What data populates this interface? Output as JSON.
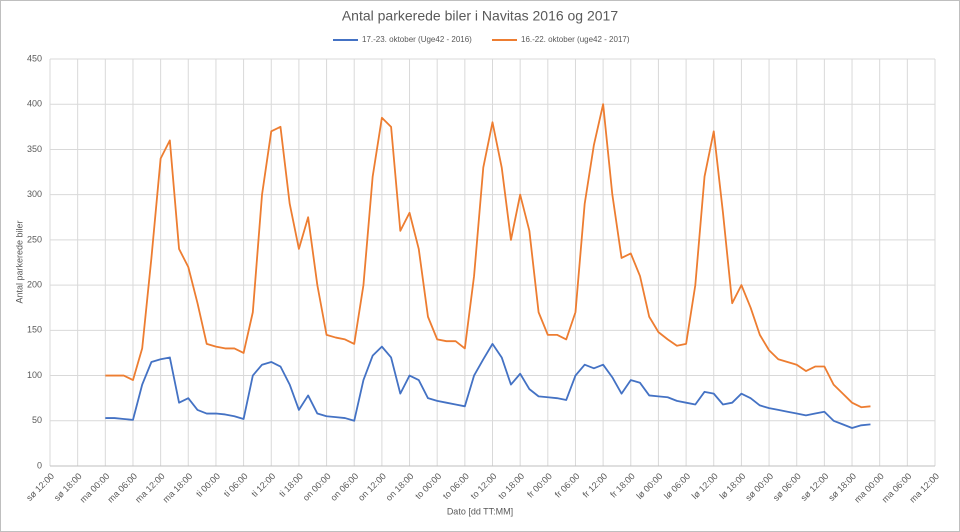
{
  "chart_data": {
    "type": "line",
    "title": "Antal parkerede biler i Navitas 2016 og 2017",
    "x_label": "Dato [dd TT:MM]",
    "y_label": "Antal parkerede biler",
    "x": [
      12,
      14,
      16,
      18,
      20,
      22,
      24,
      26,
      28,
      30,
      32,
      34,
      36,
      38,
      40,
      42,
      44,
      46,
      48,
      50,
      52,
      54,
      56,
      58,
      60,
      62,
      64,
      66,
      68,
      70,
      72,
      74,
      76,
      78,
      80,
      82,
      84,
      86,
      88,
      90,
      92,
      94,
      96,
      98,
      100,
      102,
      104,
      106,
      108,
      110,
      112,
      114,
      116,
      118,
      120,
      122,
      124,
      126,
      128,
      130,
      132,
      134,
      136,
      138,
      140,
      142,
      144,
      146,
      148,
      150,
      152,
      154,
      156,
      158,
      160,
      162,
      164,
      166,
      168,
      170,
      172,
      174,
      176,
      178
    ],
    "series": [
      {
        "name": "17.-23. oktober (Uge42 - 2016)",
        "color": "#4472c4",
        "values": [
          53,
          53,
          52,
          51,
          90,
          115,
          118,
          120,
          70,
          75,
          62,
          58,
          58,
          57,
          55,
          52,
          100,
          112,
          115,
          110,
          90,
          62,
          78,
          58,
          55,
          54,
          53,
          50,
          95,
          122,
          132,
          120,
          80,
          100,
          95,
          75,
          72,
          70,
          68,
          66,
          100,
          118,
          135,
          120,
          90,
          102,
          85,
          77,
          76,
          75,
          73,
          100,
          112,
          108,
          112,
          98,
          80,
          95,
          92,
          78,
          77,
          76,
          72,
          70,
          68,
          82,
          80,
          68,
          70,
          80,
          75,
          67,
          64,
          62,
          60,
          58,
          56,
          58,
          60,
          50,
          46,
          42,
          45,
          46
        ]
      },
      {
        "name": "16.-22. oktober (uge42 - 2017)",
        "color": "#ed7d31",
        "values": [
          100,
          100,
          100,
          95,
          130,
          230,
          340,
          360,
          240,
          220,
          180,
          135,
          132,
          130,
          130,
          125,
          170,
          300,
          370,
          375,
          290,
          240,
          275,
          200,
          145,
          142,
          140,
          135,
          200,
          320,
          385,
          375,
          260,
          280,
          240,
          165,
          140,
          138,
          138,
          130,
          210,
          330,
          380,
          330,
          250,
          300,
          260,
          170,
          145,
          145,
          140,
          170,
          290,
          355,
          400,
          300,
          230,
          235,
          210,
          165,
          148,
          140,
          133,
          135,
          200,
          320,
          370,
          280,
          180,
          200,
          175,
          145,
          128,
          118,
          115,
          112,
          105,
          110,
          110,
          90,
          80,
          70,
          65,
          66
        ]
      }
    ],
    "xlim": [
      0,
      192
    ],
    "xticks": [
      {
        "value": 0,
        "label": "sø 12:00"
      },
      {
        "value": 6,
        "label": "sø 18:00"
      },
      {
        "value": 12,
        "label": "ma 00:00"
      },
      {
        "value": 18,
        "label": "ma 06:00"
      },
      {
        "value": 24,
        "label": "ma 12:00"
      },
      {
        "value": 30,
        "label": "ma 18:00"
      },
      {
        "value": 36,
        "label": "ti 00:00"
      },
      {
        "value": 42,
        "label": "ti 06:00"
      },
      {
        "value": 48,
        "label": "ti 12:00"
      },
      {
        "value": 54,
        "label": "ti 18:00"
      },
      {
        "value": 60,
        "label": "on 00:00"
      },
      {
        "value": 66,
        "label": "on 06:00"
      },
      {
        "value": 72,
        "label": "on 12:00"
      },
      {
        "value": 78,
        "label": "on 18:00"
      },
      {
        "value": 84,
        "label": "to 00:00"
      },
      {
        "value": 90,
        "label": "to 06:00"
      },
      {
        "value": 96,
        "label": "to 12:00"
      },
      {
        "value": 102,
        "label": "to 18:00"
      },
      {
        "value": 108,
        "label": "fr 00:00"
      },
      {
        "value": 114,
        "label": "fr 06:00"
      },
      {
        "value": 120,
        "label": "fr 12:00"
      },
      {
        "value": 126,
        "label": "fr 18:00"
      },
      {
        "value": 132,
        "label": "lø 00:00"
      },
      {
        "value": 138,
        "label": "lø 06:00"
      },
      {
        "value": 144,
        "label": "lø 12:00"
      },
      {
        "value": 150,
        "label": "lø 18:00"
      },
      {
        "value": 156,
        "label": "sø 00:00"
      },
      {
        "value": 162,
        "label": "sø 06:00"
      },
      {
        "value": 168,
        "label": "sø 12:00"
      },
      {
        "value": 174,
        "label": "sø 18:00"
      },
      {
        "value": 180,
        "label": "ma 00:00"
      },
      {
        "value": 186,
        "label": "ma 06:00"
      },
      {
        "value": 192,
        "label": "ma 12:00"
      }
    ],
    "ylim": [
      0,
      450
    ],
    "yticks": [
      0,
      50,
      100,
      150,
      200,
      250,
      300,
      350,
      400,
      450
    ],
    "grid": true
  }
}
